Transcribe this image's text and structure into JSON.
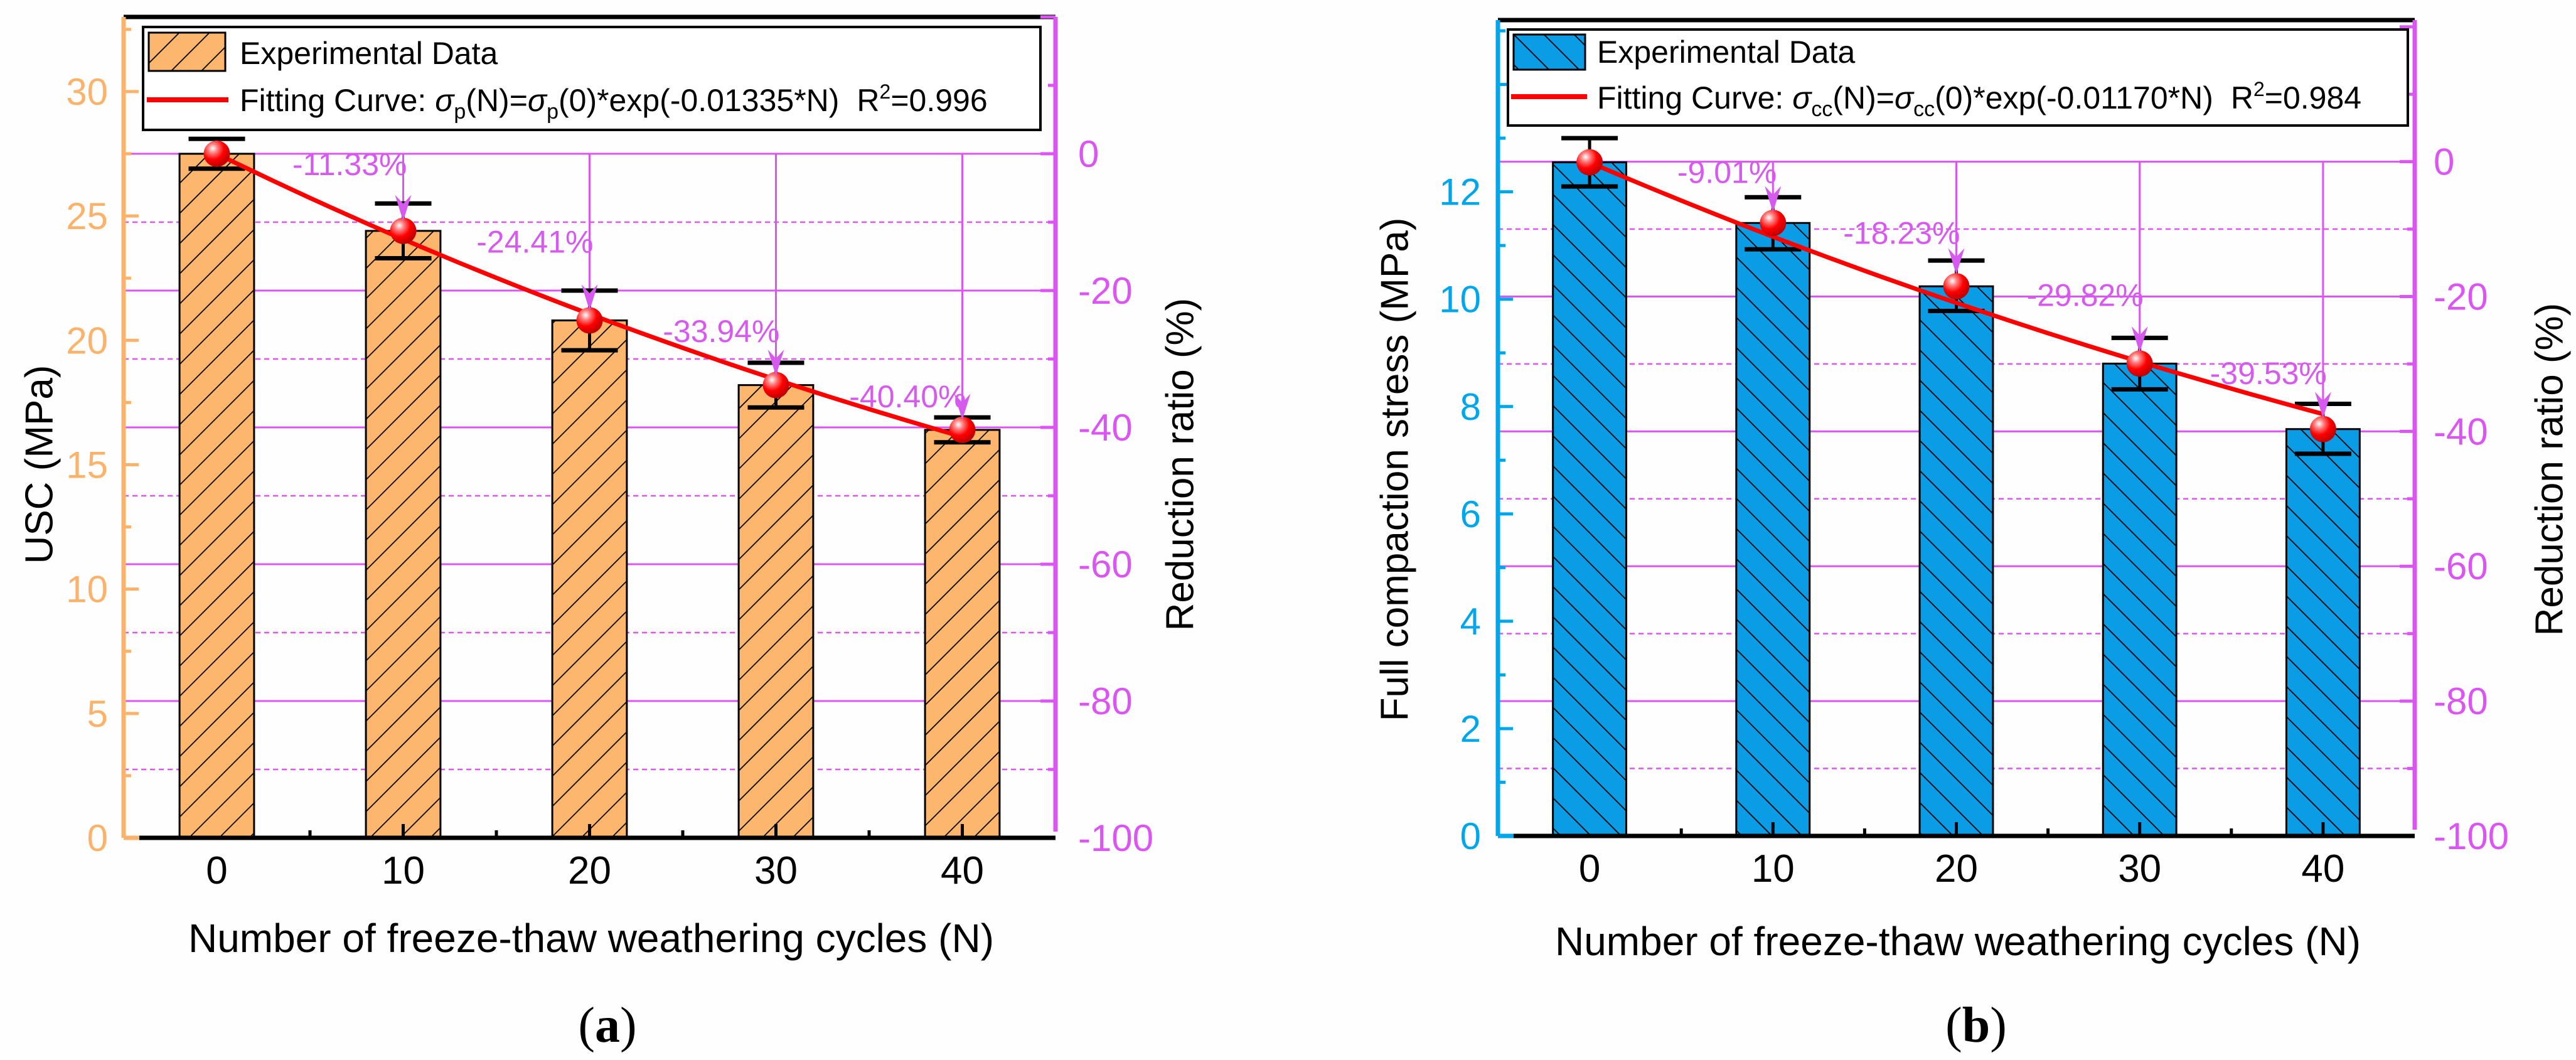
{
  "chart_data": [
    {
      "panel": "a",
      "type": "bar",
      "xlabel": "Number of freeze-thaw weathering cycles (N)",
      "ylabel": "USC (MPa)",
      "y2label": "Reduction ratio (%)",
      "caption": {
        "open": "(",
        "letter": "a",
        "close": ")"
      },
      "categories": [
        0,
        10,
        20,
        30,
        40
      ],
      "x_tick_labels": [
        "0",
        "10",
        "20",
        "30",
        "40"
      ],
      "xlim": [
        -5,
        45
      ],
      "ylim": [
        0,
        33
      ],
      "y2lim": [
        -100,
        20
      ],
      "yticks": [
        0,
        5,
        10,
        15,
        20,
        25,
        30
      ],
      "y2ticks": [
        -100,
        -80,
        -60,
        -40,
        -20,
        0
      ],
      "grid": "right-axis gridlines (solid major, dotted minor)",
      "series": [
        {
          "name": "Experimental Data",
          "type": "bar",
          "values": [
            27.5,
            24.4,
            20.8,
            18.2,
            16.4
          ],
          "error_high": [
            28.1,
            25.5,
            22.0,
            19.1,
            16.9
          ],
          "error_low": [
            26.9,
            23.3,
            19.6,
            17.3,
            15.9
          ]
        },
        {
          "name": "Fitting Curve",
          "type": "line",
          "model": "exponential",
          "initial": 27.5,
          "rate": -0.01335,
          "r2": 0.996
        }
      ],
      "reduction_ratio": [
        0,
        -11.33,
        -24.41,
        -33.94,
        -40.4
      ],
      "reduction_labels": [
        "",
        "-11.33%",
        "-24.41%",
        "-33.94%",
        "-40.40%"
      ],
      "legend": {
        "placement": "top",
        "bar_label": "Experimental Data",
        "fit_prefix": "Fitting Curve: ",
        "sym": "σ",
        "sub": "p",
        "eq_mid": "(N)=",
        "eq_end": "(0)*exp(-0.01335*N)",
        "r": "R",
        "r_sup": "2",
        "r_val": "=0.996"
      },
      "colors": {
        "bar": "#FDB66E",
        "axis_left": "#FBB36B",
        "axis_right": "#DB55F2",
        "fit": "#FF0000",
        "annotation": "#D65AEE"
      }
    },
    {
      "panel": "b",
      "type": "bar",
      "xlabel": "Number of freeze-thaw weathering cycles (N)",
      "ylabel": "Full compaction stress (MPa)",
      "y2label": "Reduction ratio (%)",
      "caption": {
        "open": "(",
        "letter": "b",
        "close": ")"
      },
      "categories": [
        0,
        10,
        20,
        30,
        40
      ],
      "x_tick_labels": [
        "0",
        "10",
        "20",
        "30",
        "40"
      ],
      "xlim": [
        -5,
        45
      ],
      "ylim": [
        0,
        15.2
      ],
      "y2lim": [
        -100,
        21
      ],
      "yticks": [
        0,
        2,
        4,
        6,
        8,
        10,
        12
      ],
      "y2ticks": [
        -100,
        -80,
        -60,
        -40,
        -20,
        0
      ],
      "grid": "right-axis gridlines (solid major, dotted minor)",
      "series": [
        {
          "name": "Experimental Data",
          "type": "bar",
          "values": [
            12.55,
            11.42,
            10.24,
            8.8,
            7.58
          ],
          "error_high": [
            13.0,
            11.9,
            10.72,
            9.28,
            8.05
          ],
          "error_low": [
            12.1,
            10.93,
            9.78,
            8.32,
            7.12
          ]
        },
        {
          "name": "Fitting Curve",
          "type": "line",
          "model": "exponential",
          "initial": 12.55,
          "rate": -0.0117,
          "r2": 0.984
        }
      ],
      "reduction_ratio": [
        0,
        -9.01,
        -18.23,
        -29.82,
        -39.53
      ],
      "reduction_labels": [
        "",
        "-9.01%",
        "-18.23%",
        "-29.82%",
        "-39.53%"
      ],
      "legend": {
        "placement": "top",
        "bar_label": "Experimental Data",
        "fit_prefix": "Fitting Curve: ",
        "sym": "σ",
        "sub": "cc",
        "eq_mid": "(N)=",
        "eq_end": "(0)*exp(-0.01170*N)",
        "r": "R",
        "r_sup": "2",
        "r_val": "=0.984"
      },
      "colors": {
        "bar": "#0A9CE4",
        "axis_left": "#00A6EA",
        "axis_right": "#DB55F2",
        "fit": "#FF0000",
        "annotation": "#D65AEE"
      }
    }
  ]
}
